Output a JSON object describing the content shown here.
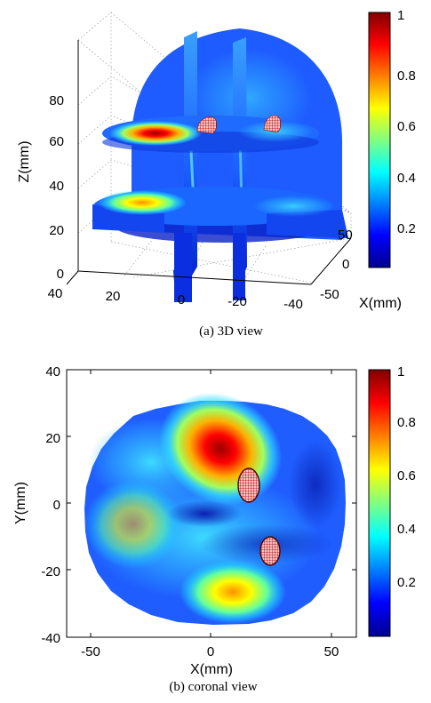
{
  "chart_data": [
    {
      "type": "heatmap",
      "view": "3D",
      "caption": "(a) 3D view",
      "xlabel": "X(mm)",
      "zlabel": "Z(mm)",
      "x_ticks": [
        "50",
        "0",
        "-50"
      ],
      "y_ticks": [
        "40",
        "20",
        "0",
        "-20",
        "-40"
      ],
      "z_ticks": [
        "0",
        "20",
        "40",
        "60",
        "80"
      ],
      "colorbar": {
        "ticks": [
          "0.2",
          "0.4",
          "0.6",
          "0.8",
          "1"
        ],
        "range": [
          0,
          1
        ],
        "colormap": "jet"
      },
      "slices": [
        {
          "kind": "axial",
          "z": 60,
          "hotspot_x": 25,
          "peak": 1.0
        },
        {
          "kind": "axial",
          "z": 25,
          "hotspot_x": 22,
          "peak": 0.7
        },
        {
          "kind": "sagittal",
          "y": 0,
          "peak": 0.5
        },
        {
          "kind": "sagittal",
          "y": -20,
          "peak": 0.4
        }
      ],
      "grid": true
    },
    {
      "type": "heatmap",
      "view": "coronal",
      "caption": "(b) coronal view",
      "xlabel": "X(mm)",
      "ylabel": "Y(mm)",
      "xlim": [
        -60,
        60
      ],
      "ylim": [
        -40,
        40
      ],
      "x_ticks": [
        "-50",
        "0",
        "50"
      ],
      "y_ticks": [
        "40",
        "20",
        "0",
        "-20",
        "-40"
      ],
      "colorbar": {
        "ticks": [
          "0.2",
          "0.4",
          "0.6",
          "0.8",
          "1"
        ],
        "range": [
          0,
          1
        ],
        "colormap": "jet"
      },
      "field_extent": {
        "cx": 0,
        "cy": 0,
        "rx": 55,
        "ry": 35
      },
      "hotspots": [
        {
          "x": -2,
          "y": 15,
          "value": 1.0,
          "label_region": "upper-center"
        },
        {
          "x": 8,
          "y": -22,
          "value": 0.7,
          "label_region": "lower"
        }
      ],
      "targets": [
        {
          "x": 15,
          "y": 6,
          "rx": 4.5,
          "ry": 6
        },
        {
          "x": 24,
          "y": -15,
          "rx": 4,
          "ry": 5
        }
      ],
      "grid": false
    }
  ]
}
